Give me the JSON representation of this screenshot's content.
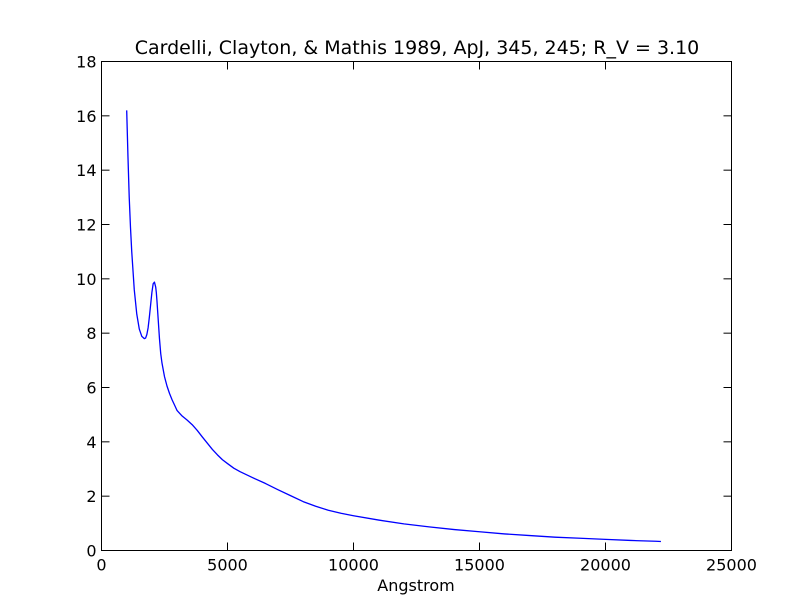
{
  "chart_data": {
    "type": "line",
    "title": "Cardelli, Clayton, & Mathis 1989, ApJ, 345, 245; R_V = 3.10",
    "xlabel": "Angstrom",
    "ylabel": "",
    "xlim": [
      0,
      25000
    ],
    "ylim": [
      0,
      18
    ],
    "xticks": [
      0,
      5000,
      10000,
      15000,
      20000,
      25000
    ],
    "yticks": [
      0,
      2,
      4,
      6,
      8,
      10,
      12,
      14,
      16,
      18
    ],
    "xtick_labels": [
      "0",
      "5000",
      "10000",
      "15000",
      "20000",
      "25000"
    ],
    "ytick_labels": [
      "0",
      "2",
      "4",
      "6",
      "8",
      "10",
      "12",
      "14",
      "16",
      "18"
    ],
    "grid": false,
    "line_color": "#0000ff",
    "series": [
      {
        "x": [
          1000,
          1050,
          1100,
          1150,
          1200,
          1300,
          1400,
          1500,
          1600,
          1700,
          1750,
          1800,
          1850,
          1900,
          1950,
          2000,
          2050,
          2100,
          2150,
          2175,
          2200,
          2250,
          2300,
          2350,
          2400,
          2500,
          2600,
          2700,
          2800,
          2900,
          3000,
          3200,
          3400,
          3600,
          3800,
          4000,
          4200,
          4400,
          4600,
          4800,
          5000,
          5250,
          5500,
          6000,
          6500,
          7000,
          7500,
          8000,
          8500,
          9000,
          9500,
          10000,
          11000,
          12000,
          13000,
          14000,
          15000,
          16000,
          17000,
          18000,
          19000,
          20000,
          21000,
          22000,
          22200
        ],
        "y": [
          16.2,
          14.5,
          13.0,
          11.9,
          11.0,
          9.6,
          8.7,
          8.15,
          7.88,
          7.8,
          7.82,
          7.95,
          8.2,
          8.6,
          9.05,
          9.5,
          9.82,
          9.88,
          9.7,
          9.5,
          9.2,
          8.5,
          7.8,
          7.25,
          6.9,
          6.4,
          6.05,
          5.78,
          5.55,
          5.35,
          5.15,
          4.95,
          4.8,
          4.63,
          4.42,
          4.18,
          3.95,
          3.72,
          3.52,
          3.34,
          3.2,
          3.03,
          2.9,
          2.68,
          2.47,
          2.24,
          2.02,
          1.8,
          1.63,
          1.48,
          1.37,
          1.28,
          1.12,
          0.98,
          0.87,
          0.77,
          0.69,
          0.61,
          0.55,
          0.49,
          0.45,
          0.41,
          0.37,
          0.34,
          0.33
        ]
      }
    ]
  }
}
